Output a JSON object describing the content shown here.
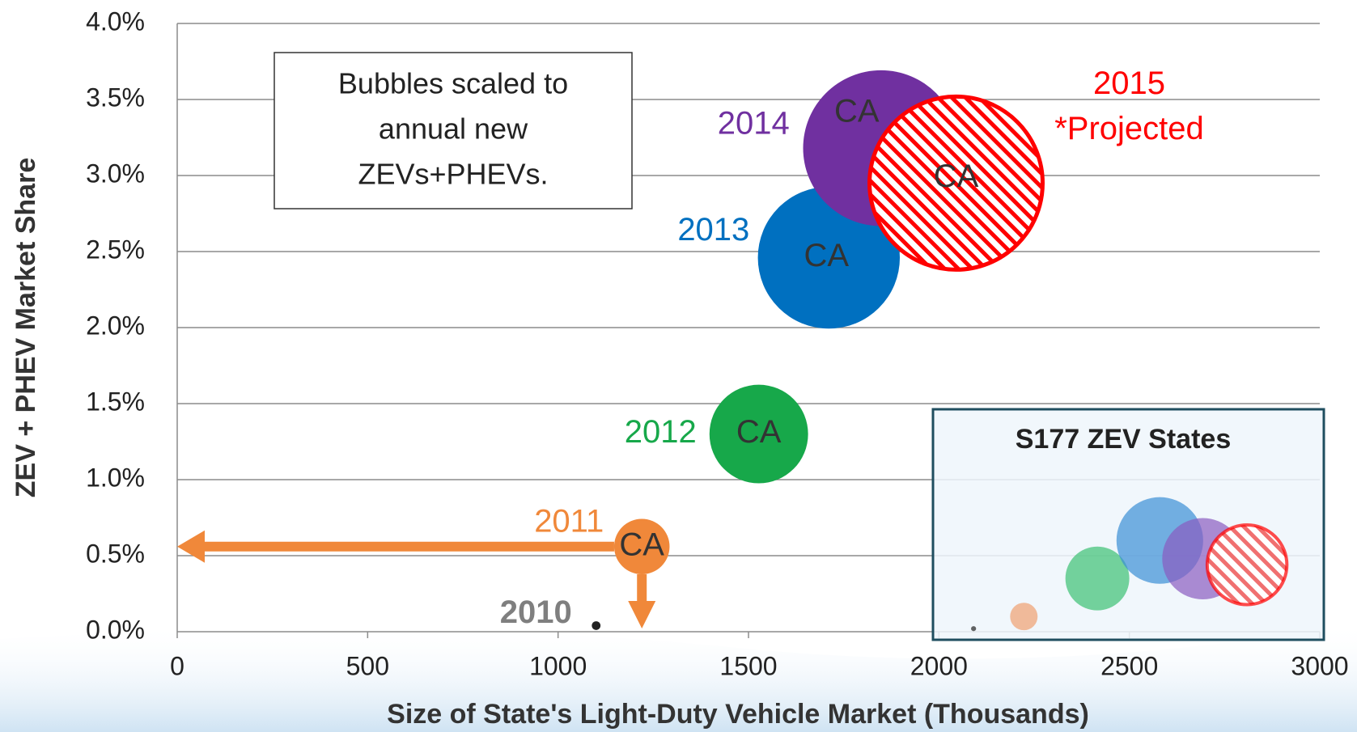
{
  "chart_data": [
    {
      "type": "bubble",
      "x_label": "Size of State's Light-Duty Vehicle Market (Thousands)",
      "y_label": "ZEV + PHEV Market Share",
      "xlim": [
        0,
        3000
      ],
      "xticks": [
        0,
        500,
        1000,
        1500,
        2000,
        2500,
        3000
      ],
      "ylim": [
        0,
        4
      ],
      "yticks": [
        {
          "value": 0,
          "label": "0.0%"
        },
        {
          "value": 0.5,
          "label": "0.5%"
        },
        {
          "value": 1,
          "label": "1.0%"
        },
        {
          "value": 1.5,
          "label": "1.5%"
        },
        {
          "value": 2,
          "label": "2.0%"
        },
        {
          "value": 2.5,
          "label": "2.5%"
        },
        {
          "value": 3,
          "label": "3.0%"
        },
        {
          "value": 3.5,
          "label": "3.5%"
        },
        {
          "value": 4,
          "label": "4.0%"
        }
      ],
      "grid": true,
      "note": [
        "Bubbles scaled to",
        "annual new",
        "ZEVs+PHEVs."
      ],
      "annotation": "*Projected",
      "series": [
        {
          "name": "2010",
          "color": "#222222",
          "label_color": "#7f7f7f",
          "x": [
            1100
          ],
          "values": [
            0.04
          ],
          "sizes": [
            0.15
          ],
          "labels": [
            null
          ]
        },
        {
          "name": "2011",
          "color": "#f0883a",
          "label_color": "#f0883a",
          "x": [
            1220
          ],
          "values": [
            0.56
          ],
          "sizes": [
            6.1
          ],
          "labels": [
            "CA"
          ]
        },
        {
          "name": "2012",
          "color": "#17a84a",
          "label_color": "#17a84a",
          "x": [
            1527
          ],
          "values": [
            1.3
          ],
          "sizes": [
            19.3
          ],
          "labels": [
            "CA"
          ]
        },
        {
          "name": "2013",
          "color": "#0070c0",
          "label_color": "#0070c0",
          "x": [
            1711
          ],
          "values": [
            2.46
          ],
          "sizes": [
            40
          ],
          "labels": [
            "CA"
          ]
        },
        {
          "name": "2014",
          "color": "#7030a0",
          "label_color": "#7030a0",
          "x": [
            1848
          ],
          "values": [
            3.18
          ],
          "sizes": [
            48.2
          ],
          "labels": [
            "CA"
          ]
        },
        {
          "name": "2015",
          "color": "#ff0000",
          "label_color": "#ff0000",
          "hatch": true,
          "x": [
            2045
          ],
          "values": [
            2.95
          ],
          "sizes": [
            59.5
          ],
          "labels": [
            "CA"
          ]
        }
      ]
    },
    {
      "type": "bubble",
      "title": "S177 ZEV  States",
      "series": [
        {
          "x": [
            2091,
            2223,
            2416,
            2580,
            2693,
            2809
          ],
          "values": [
            0.02,
            0.1,
            0.35,
            0.6,
            0.48,
            0.44
          ],
          "sizes": [
            0.05,
            1.5,
            8.1,
            14.9,
            13.1,
            12.6
          ],
          "colors": [
            "#222222",
            "#f0a070",
            "#3cc073",
            "#3a8fd6",
            "#8a5bc0",
            "#ff0000"
          ],
          "hatch": [
            false,
            false,
            false,
            false,
            false,
            true
          ]
        }
      ]
    }
  ]
}
